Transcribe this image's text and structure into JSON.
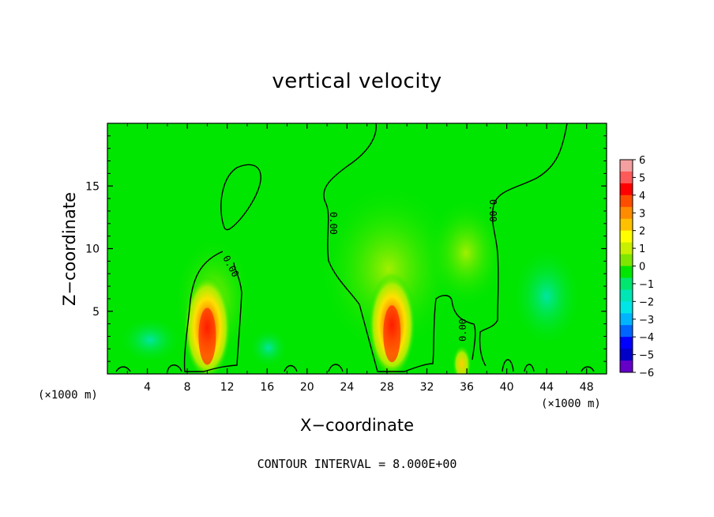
{
  "chart_data": {
    "type": "heatmap",
    "title": "vertical velocity",
    "xlabel": "X−coordinate",
    "ylabel": "Z−coordinate",
    "x_unit": "(×1000 m)",
    "annotation": "CONTOUR INTERVAL = 8.000E+00",
    "xlim": [
      0,
      50
    ],
    "ylim": [
      0,
      20
    ],
    "x_ticks": [
      "4",
      "8",
      "12",
      "16",
      "20",
      "24",
      "28",
      "32",
      "36",
      "40",
      "44",
      "48"
    ],
    "y_ticks": [
      "5",
      "10",
      "15"
    ],
    "contour_labels": [
      "0.00",
      "0.00",
      "0.00",
      "0.00"
    ],
    "colorbar": {
      "ticks": [
        "6",
        "5",
        "4",
        "3",
        "2",
        "1",
        "0",
        "−1",
        "−2",
        "−3",
        "−4",
        "−5",
        "−6"
      ],
      "colors": [
        "#f4a0a0",
        "#ff5a5a",
        "#ff0000",
        "#ff4d00",
        "#ff8c00",
        "#ffc000",
        "#ffff00",
        "#c8f000",
        "#7ee600",
        "#00e600",
        "#00e66e",
        "#00e6b4",
        "#00e6e6",
        "#00b4ff",
        "#0064ff",
        "#0000ff",
        "#0000c8",
        "#6400c8"
      ]
    },
    "features": [
      {
        "x": 10,
        "z": 3.0,
        "peak": 5.0
      },
      {
        "x": 28.5,
        "z": 3.2,
        "peak": 5.5
      },
      {
        "x": 35.5,
        "z": 0.8,
        "peak": 2.0
      },
      {
        "x": 44,
        "z": 5.0,
        "peak": -1.0
      }
    ]
  }
}
